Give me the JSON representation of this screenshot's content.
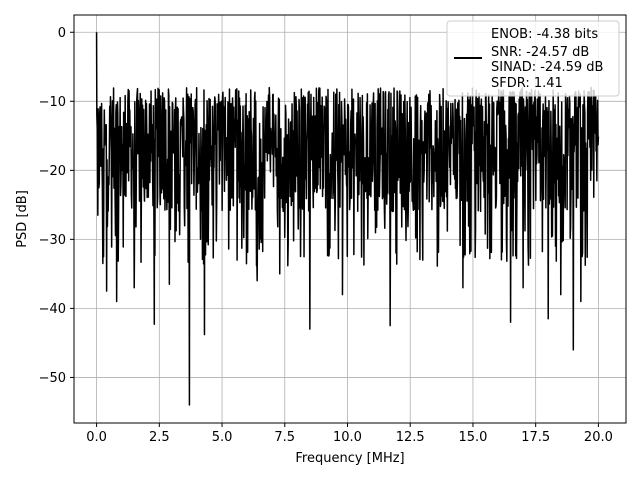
{
  "chart_data": {
    "type": "line",
    "xlabel": "Frequency [MHz]",
    "ylabel": "PSD [dB]",
    "xlim": [
      -0.9,
      21.1
    ],
    "ylim": [
      -56.6,
      2.5
    ],
    "xticks": [
      0.0,
      2.5,
      5.0,
      7.5,
      10.0,
      12.5,
      15.0,
      17.5,
      20.0
    ],
    "xtick_labels": [
      "0.0",
      "2.5",
      "5.0",
      "7.5",
      "10.0",
      "12.5",
      "15.0",
      "17.5",
      "20.0"
    ],
    "yticks": [
      0,
      -10,
      -20,
      -30,
      -40,
      -50
    ],
    "ytick_labels": [
      "0",
      "−10",
      "−20",
      "−30",
      "−40",
      "−50"
    ],
    "grid": true,
    "legend": {
      "placement": "upper-right",
      "entries": [
        "ENOB: -4.38 bits",
        "SNR: -24.57 dB",
        "SINAD: -24.59 dB",
        "SFDR: 1.41"
      ]
    },
    "series": [
      {
        "color": "#000000",
        "x_start": 0.0,
        "x_end": 20.0,
        "peak": {
          "x": 0.0,
          "y": 0.0
        },
        "typical_range": [
          -26,
          -8
        ],
        "notable_dips": [
          {
            "x": 0.05,
            "y": -26.5
          },
          {
            "x": 0.25,
            "y": -33.5
          },
          {
            "x": 0.4,
            "y": -37.5
          },
          {
            "x": 0.8,
            "y": -39.0
          },
          {
            "x": 1.5,
            "y": -37.0
          },
          {
            "x": 2.3,
            "y": -42.3
          },
          {
            "x": 2.9,
            "y": -36.5
          },
          {
            "x": 3.7,
            "y": -54.0
          },
          {
            "x": 4.3,
            "y": -43.8
          },
          {
            "x": 5.6,
            "y": -33.0
          },
          {
            "x": 6.4,
            "y": -36.0
          },
          {
            "x": 7.3,
            "y": -35.0
          },
          {
            "x": 8.5,
            "y": -43.0
          },
          {
            "x": 9.8,
            "y": -38.0
          },
          {
            "x": 11.7,
            "y": -42.5
          },
          {
            "x": 13.0,
            "y": -33.0
          },
          {
            "x": 14.6,
            "y": -37.0
          },
          {
            "x": 16.5,
            "y": -42.0
          },
          {
            "x": 17.0,
            "y": -37.0
          },
          {
            "x": 18.0,
            "y": -41.5
          },
          {
            "x": 18.5,
            "y": -38.0
          },
          {
            "x": 19.0,
            "y": -46.0
          },
          {
            "x": 19.3,
            "y": -39.0
          }
        ]
      }
    ]
  }
}
